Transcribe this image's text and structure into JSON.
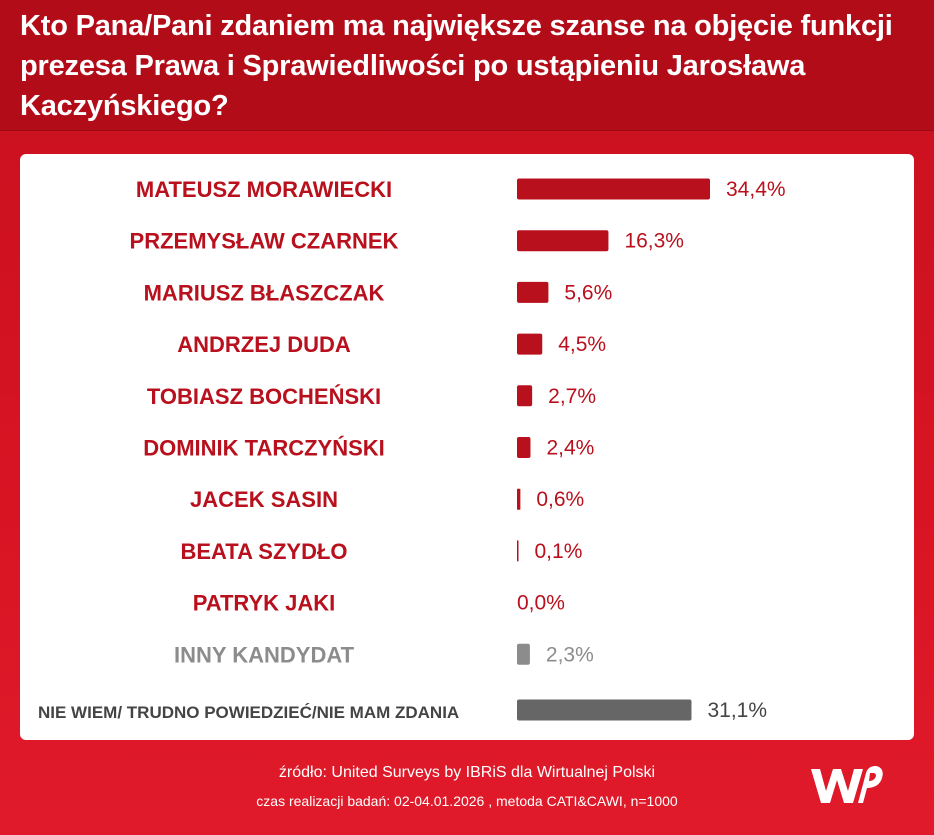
{
  "title": "Kto Pana/Pani zdaniem ma największe szanse na objęcie funkcji prezesa Prawa i Sprawiedliwości po ustąpieniu Jarosława Kaczyńskiego?",
  "footer": {
    "source": "źródło: United Surveys by IBRiS dla Wirtualnej Polski",
    "method": "czas realizacji badań: 02-04.01.2026 , metoda CATI&CAWI, n=1000"
  },
  "logo": {
    "icon": "wp-logo-icon",
    "color": "#ffffff"
  },
  "colors": {
    "candidate": "#b8101c",
    "other": "#8c8c8c",
    "unknown": "#666666",
    "background": "#d01422"
  },
  "chart_data": {
    "type": "bar",
    "orientation": "horizontal",
    "categories": [
      "MATEUSZ MORAWIECKI",
      "PRZEMYSŁAW CZARNEK",
      "MARIUSZ BŁASZCZAK",
      "ANDRZEJ DUDA",
      "TOBIASZ BOCHEŃSKI",
      "DOMINIK TARCZYŃSKI",
      "JACEK SASIN",
      "BEATA SZYDŁO",
      "PATRYK JAKI",
      "INNY KANDYDAT",
      "NIE WIEM/ TRUDNO POWIEDZIEĆ/NIE MAM ZDANIA"
    ],
    "values": [
      34.4,
      16.3,
      5.6,
      4.5,
      2.7,
      2.4,
      0.6,
      0.1,
      0.0,
      2.3,
      31.1
    ],
    "value_labels": [
      "34,4%",
      "16,3%",
      "5,6%",
      "4,5%",
      "2,7%",
      "2,4%",
      "0,6%",
      "0,1%",
      "0,0%",
      "2,3%",
      "31,1%"
    ],
    "bar_colors": [
      "#b8101c",
      "#b8101c",
      "#b8101c",
      "#b8101c",
      "#b8101c",
      "#b8101c",
      "#b8101c",
      "#b8101c",
      "#b8101c",
      "#8c8c8c",
      "#666666"
    ],
    "label_colors": [
      "#b8101c",
      "#b8101c",
      "#b8101c",
      "#b8101c",
      "#b8101c",
      "#b8101c",
      "#b8101c",
      "#b8101c",
      "#b8101c",
      "#8c8c8c",
      "#444444"
    ],
    "value_colors": [
      "#b8101c",
      "#b8101c",
      "#b8101c",
      "#b8101c",
      "#b8101c",
      "#b8101c",
      "#b8101c",
      "#b8101c",
      "#b8101c",
      "#8c8c8c",
      "#444444"
    ],
    "xlim": [
      0,
      34.4
    ],
    "grid": false,
    "legend": "none"
  }
}
